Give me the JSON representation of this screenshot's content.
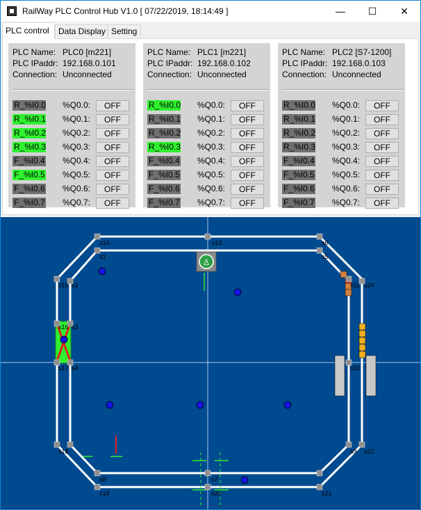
{
  "window": {
    "title": "RailWay PLC Control Hub V1.0 [ 07/22/2019, 18:14:49 ]",
    "minimize": "—",
    "maximize": "☐",
    "close": "✕"
  },
  "tabs": [
    "PLC control",
    "Data Display",
    "Setting"
  ],
  "labels": {
    "name": "PLC Name:",
    "ip": "PLC IPaddr:",
    "conn": "Connection:",
    "off": "OFF"
  },
  "plcs": [
    {
      "name": "PLC0 [m221]",
      "ip": "192.168.0.101",
      "conn": "Unconnected",
      "inputs": [
        [
          "R_%I0.0",
          false
        ],
        [
          "R_%I0.1",
          true
        ],
        [
          "R_%I0.2",
          true
        ],
        [
          "R_%I0.3",
          true
        ],
        [
          "F_%I0.4",
          false
        ],
        [
          "F_%I0.5",
          true
        ],
        [
          "F_%I0.6",
          false
        ],
        [
          "F_%I0.7",
          false
        ]
      ]
    },
    {
      "name": "PLC1 [m221]",
      "ip": "192.168.0.102",
      "conn": "Unconnected",
      "inputs": [
        [
          "R_%I0.0",
          true
        ],
        [
          "R_%I0.1",
          false
        ],
        [
          "R_%I0.2",
          false
        ],
        [
          "R_%I0.3",
          true
        ],
        [
          "F_%I0.4",
          false
        ],
        [
          "F_%I0.5",
          false
        ],
        [
          "F_%I0.6",
          false
        ],
        [
          "F_%I0.7",
          false
        ]
      ]
    },
    {
      "name": "PLC2 [S7-1200]",
      "ip": "192.168.0.103",
      "conn": "Unconnected",
      "inputs": [
        [
          "R_%I0.0",
          false
        ],
        [
          "R_%I0.1",
          false
        ],
        [
          "R_%I0.2",
          false
        ],
        [
          "R_%I0.3",
          false
        ],
        [
          "F_%I0.4",
          false
        ],
        [
          "F_%I0.5",
          false
        ],
        [
          "F_%I0.6",
          false
        ],
        [
          "F_%I0.7",
          false
        ]
      ]
    }
  ],
  "outputs": [
    "%Q0.0:",
    "%Q0.1:",
    "%Q0.2:",
    "%Q0.3:",
    "%Q0.4:",
    "%Q0.5:",
    "%Q0.6:",
    "%Q0.7:"
  ],
  "sensors": [
    "s14",
    "s13",
    "s6",
    "s1",
    "s2",
    "s5",
    "s11",
    "s24",
    "s15",
    "s16",
    "s3",
    "s10",
    "s17",
    "s4",
    "s18",
    "s9",
    "s22",
    "s8",
    "s7",
    "s19",
    "s20",
    "s21"
  ],
  "colors": {
    "layout_bg": "#004a8f",
    "input_on": "#2ff02f",
    "input_off": "#707070",
    "track": "#ffffff",
    "train": "#1515e6"
  }
}
